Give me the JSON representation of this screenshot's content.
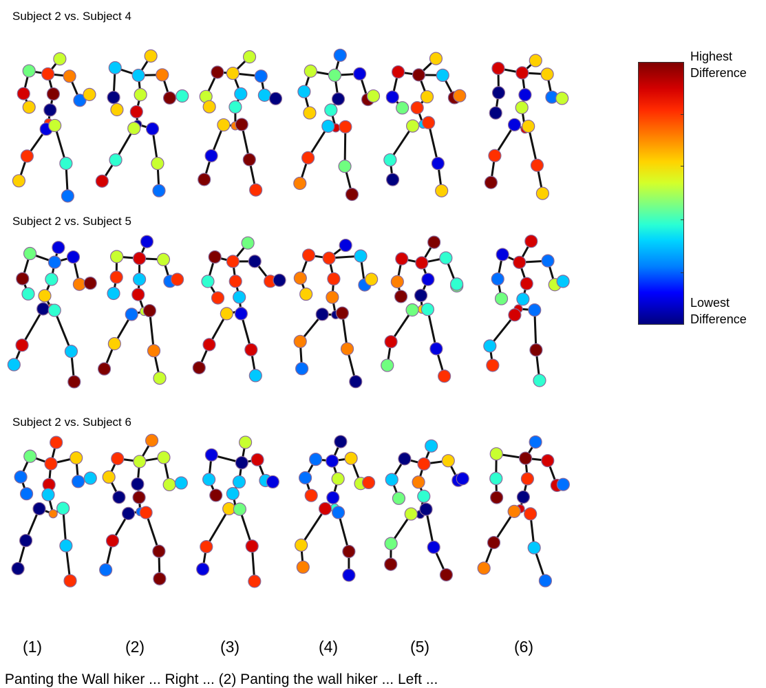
{
  "rows": [
    {
      "title": "Subject 2 vs. Subject 4"
    },
    {
      "title": "Subject 2 vs. Subject 5"
    },
    {
      "title": "Subject 2 vs. Subject 6"
    }
  ],
  "columns": [
    "(1)",
    "(2)",
    "(3)",
    "(4)",
    "(5)",
    "(6)"
  ],
  "colorbar": {
    "high_label": "Highest Difference",
    "low_label": "Lowest Difference",
    "high_color": "#7f0000",
    "low_color": "#00007f"
  },
  "caption": ") Panting the Wall hiker ... Right ... (2) Panting the wall hiker ... Left ..."
}
